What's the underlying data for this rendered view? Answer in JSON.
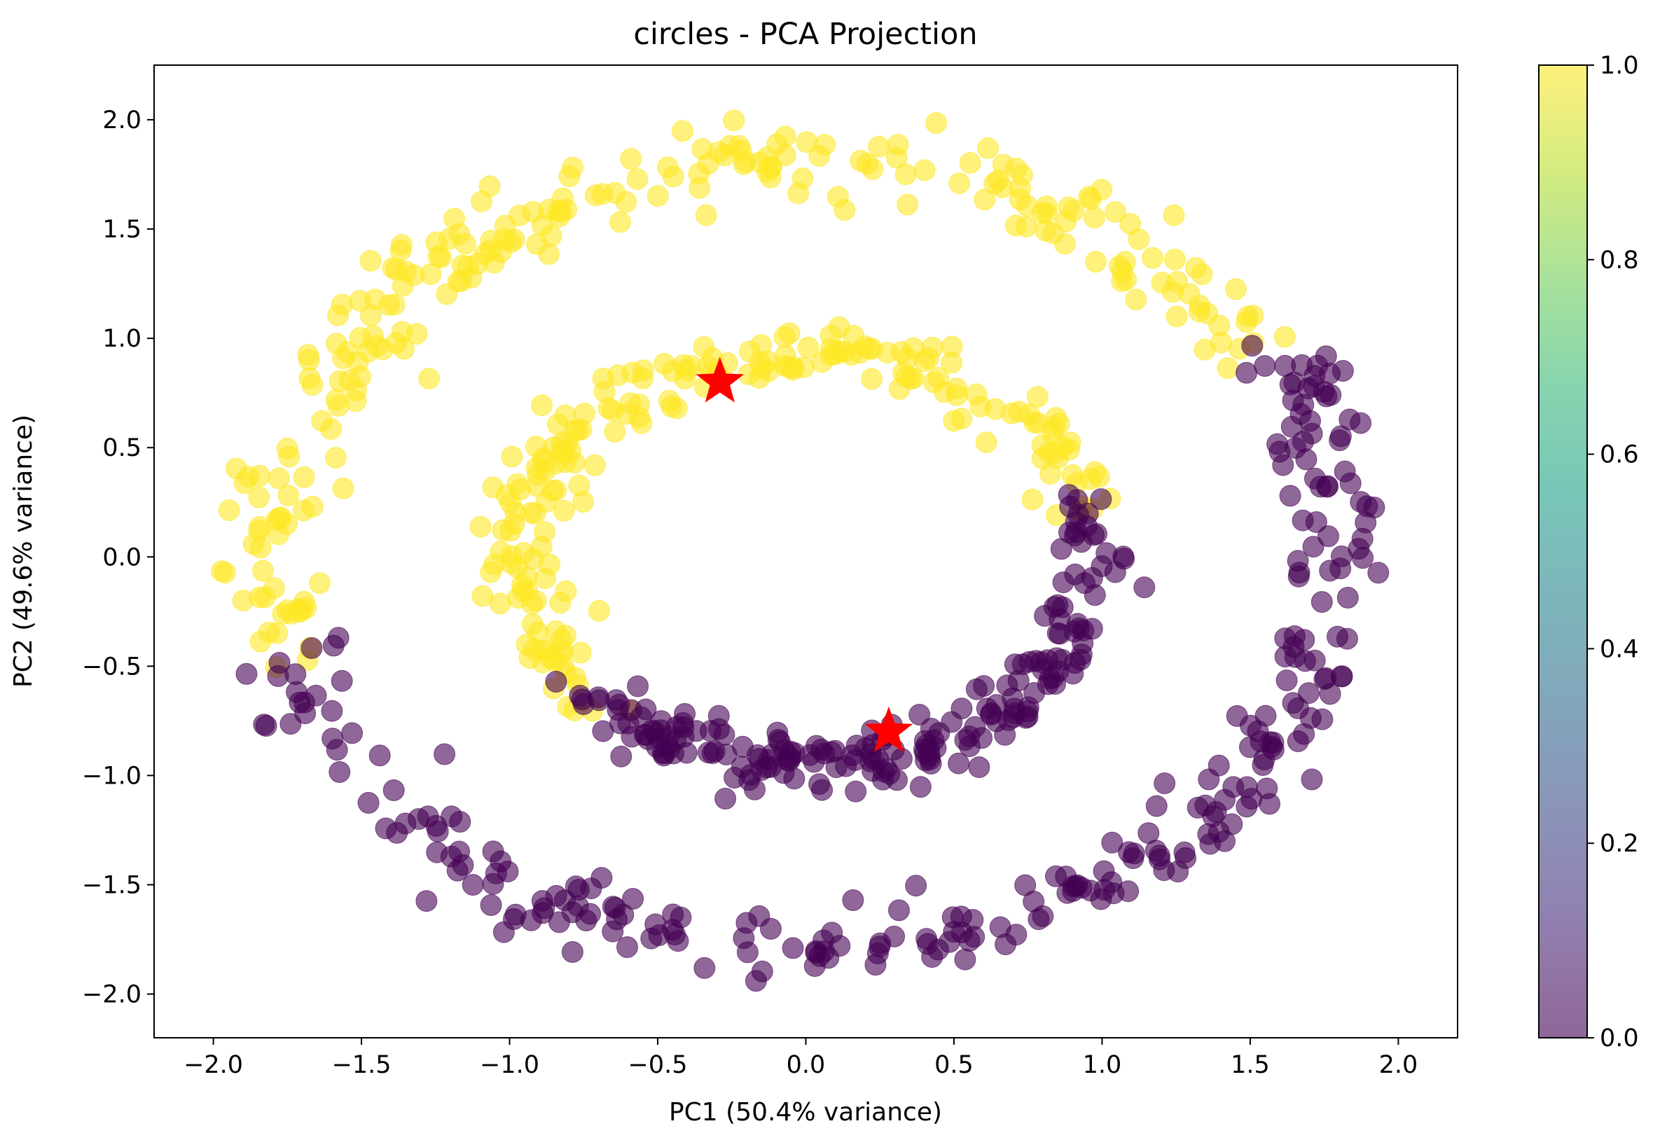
{
  "chart_data": {
    "type": "scatter",
    "title": "circles - PCA Projection",
    "xlabel": "PC1 (50.4% variance)",
    "ylabel": "PC2 (49.6% variance)",
    "xlim": [
      -2.2,
      2.2
    ],
    "ylim": [
      -2.2,
      2.25
    ],
    "xticks": [
      -2.0,
      -1.5,
      -1.0,
      -0.5,
      0.0,
      0.5,
      1.0,
      1.5,
      2.0
    ],
    "yticks": [
      -2.0,
      -1.5,
      -1.0,
      -0.5,
      0.0,
      0.5,
      1.0,
      1.5,
      2.0
    ],
    "xtick_labels": [
      "−2.0",
      "−1.5",
      "−1.0",
      "−0.5",
      "0.0",
      "0.5",
      "1.0",
      "1.5",
      "2.0"
    ],
    "ytick_labels": [
      "−2.0",
      "−1.5",
      "−1.0",
      "−0.5",
      "0.0",
      "0.5",
      "1.0",
      "1.5",
      "2.0"
    ],
    "grid": false,
    "colormap": "viridis",
    "point_alpha": 0.6,
    "colors": {
      "class_0": "#440154",
      "class_1": "#fde725",
      "centroid": "#ff0000"
    },
    "series": [
      {
        "class_value": 1,
        "color": "#fde725",
        "rings": [
          {
            "radius": 1.8,
            "start_deg": 32,
            "end_deg": 197,
            "count": 240,
            "noise": 0.09
          },
          {
            "radius": 0.95,
            "start_deg": 14,
            "end_deg": 220,
            "count": 210,
            "noise": 0.07
          }
        ]
      },
      {
        "class_value": 0,
        "color": "#440154",
        "rings": [
          {
            "radius": 1.8,
            "start_deg": 197,
            "end_deg": 392,
            "count": 270,
            "noise": 0.09
          },
          {
            "radius": 0.95,
            "start_deg": 220,
            "end_deg": 374,
            "count": 210,
            "noise": 0.07
          }
        ]
      }
    ],
    "centroids": [
      {
        "x": -0.29,
        "y": 0.8,
        "color": "#ff0000",
        "marker": "star"
      },
      {
        "x": 0.28,
        "y": -0.8,
        "color": "#ff0000",
        "marker": "star"
      }
    ],
    "colorbar": {
      "range": [
        0.0,
        1.0
      ],
      "ticks": [
        0.0,
        0.2,
        0.4,
        0.6,
        0.8,
        1.0
      ],
      "tick_labels": [
        "0.0",
        "0.2",
        "0.4",
        "0.6",
        "0.8",
        "1.0"
      ],
      "stops": [
        "#440154",
        "#482878",
        "#3e4989",
        "#31688e",
        "#26828e",
        "#1f9e89",
        "#35b779",
        "#6ece58",
        "#b5de2b",
        "#fde725"
      ]
    }
  }
}
